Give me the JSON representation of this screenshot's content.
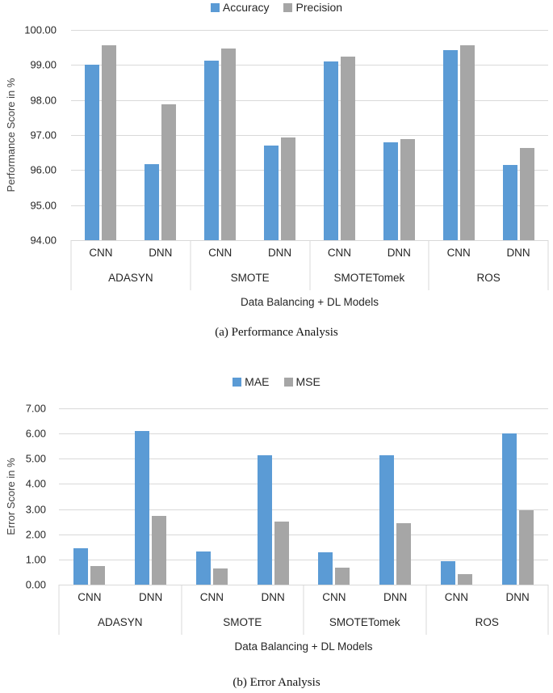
{
  "colors": {
    "series_blue": "#5b9bd5",
    "series_gray": "#a6a6a6",
    "gridline": "#d9d9d9"
  },
  "chart_data": [
    {
      "type": "bar",
      "caption": "(a) Performance Analysis",
      "ylabel": "Performance Score in %",
      "xlabel": "Data Balancing + DL Models",
      "ylim": [
        94.0,
        100.0
      ],
      "ytick_step": 1.0,
      "ytick_decimals": 2,
      "grid": true,
      "legend_position": "top-center",
      "groups": [
        "ADASYN",
        "SMOTE",
        "SMOTETomek",
        "ROS"
      ],
      "subgroups": [
        "CNN",
        "DNN"
      ],
      "value_order": [
        "ADASYN-CNN",
        "ADASYN-DNN",
        "SMOTE-CNN",
        "SMOTE-DNN",
        "SMOTETomek-CNN",
        "SMOTETomek-DNN",
        "ROS-CNN",
        "ROS-DNN"
      ],
      "series": [
        {
          "name": "Accuracy",
          "color": "#5b9bd5",
          "values": [
            99.0,
            96.17,
            99.12,
            96.7,
            99.09,
            96.8,
            99.43,
            96.15
          ]
        },
        {
          "name": "Precision",
          "color": "#a6a6a6",
          "values": [
            99.57,
            97.88,
            99.47,
            96.94,
            99.23,
            96.88,
            99.57,
            96.62
          ]
        }
      ]
    },
    {
      "type": "bar",
      "caption": "(b) Error Analysis",
      "ylabel": "Error Score in %",
      "xlabel": "Data Balancing + DL Models",
      "ylim": [
        0.0,
        7.0
      ],
      "ytick_step": 1.0,
      "ytick_decimals": 2,
      "grid": true,
      "legend_position": "top-center",
      "groups": [
        "ADASYN",
        "SMOTE",
        "SMOTETomek",
        "ROS"
      ],
      "subgroups": [
        "CNN",
        "DNN"
      ],
      "value_order": [
        "ADASYN-CNN",
        "ADASYN-DNN",
        "SMOTE-CNN",
        "SMOTE-DNN",
        "SMOTETomek-CNN",
        "SMOTETomek-DNN",
        "ROS-CNN",
        "ROS-DNN"
      ],
      "series": [
        {
          "name": "MAE",
          "color": "#5b9bd5",
          "values": [
            1.43,
            6.1,
            1.32,
            5.15,
            1.3,
            5.14,
            0.93,
            6.02
          ]
        },
        {
          "name": "MSE",
          "color": "#a6a6a6",
          "values": [
            0.75,
            2.72,
            0.63,
            2.52,
            0.68,
            2.43,
            0.42,
            2.94
          ]
        }
      ]
    }
  ]
}
